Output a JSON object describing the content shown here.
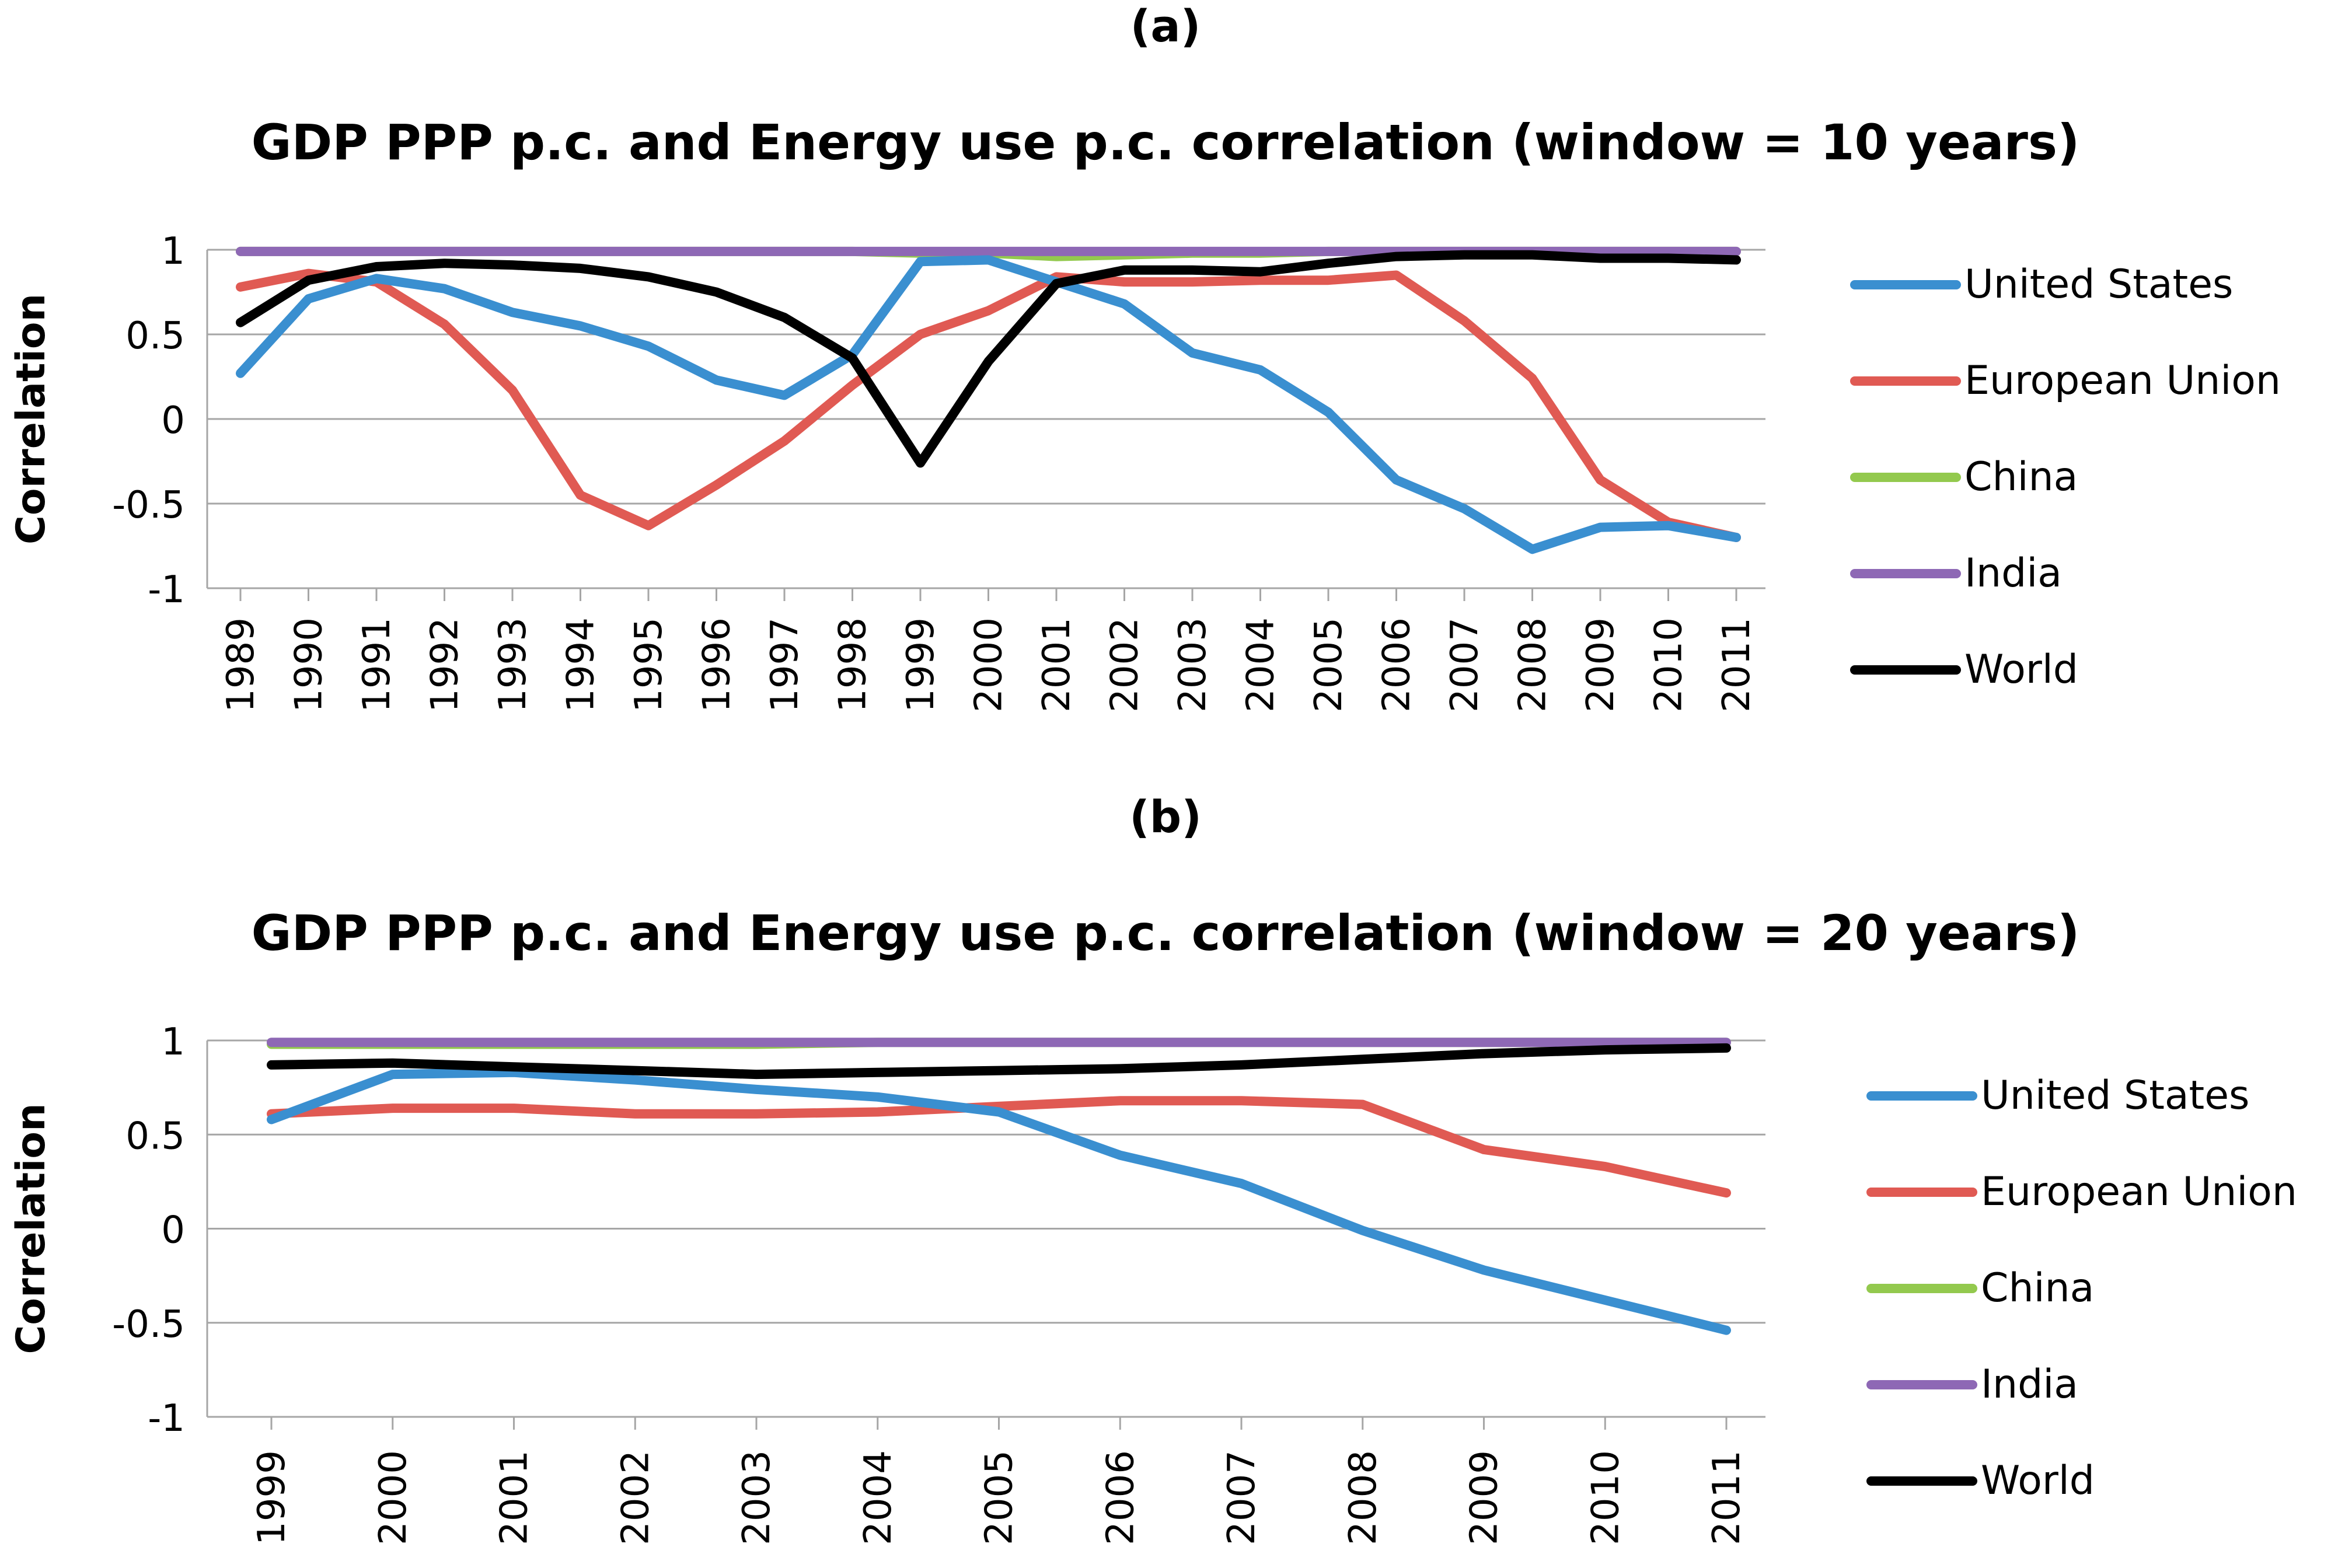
{
  "panels": [
    {
      "letter": "(a)",
      "title": "GDP PPP p.c. and Energy use p.c. correlation (window = 10 years)"
    },
    {
      "letter": "(b)",
      "title": "GDP PPP p.c. and Energy use p.c. correlation (window = 20 years)"
    }
  ],
  "chart_data": [
    {
      "type": "line",
      "title": "GDP PPP p.c. and Energy use p.c. correlation (window = 10 years)",
      "xlabel": "",
      "ylabel": "Correlation",
      "ylim": [
        -1,
        1
      ],
      "yticks": [
        1,
        0.5,
        0,
        -0.5,
        -1
      ],
      "ytick_labels": [
        "1",
        "0.5",
        "0",
        "-0.5",
        "-1"
      ],
      "grid": true,
      "legend_position": "right",
      "categories": [
        "1989",
        "1990",
        "1991",
        "1992",
        "1993",
        "1994",
        "1995",
        "1996",
        "1997",
        "1998",
        "1999",
        "2000",
        "2001",
        "2002",
        "2003",
        "2004",
        "2005",
        "2006",
        "2007",
        "2008",
        "2009",
        "2010",
        "2011"
      ],
      "series": [
        {
          "name": "United States",
          "color": "#3a8fd0",
          "values": [
            0.27,
            0.71,
            0.83,
            0.77,
            0.63,
            0.55,
            0.43,
            0.23,
            0.14,
            0.38,
            0.93,
            0.94,
            0.81,
            0.68,
            0.39,
            0.29,
            0.04,
            -0.36,
            -0.53,
            -0.77,
            -0.64,
            -0.63,
            -0.7
          ]
        },
        {
          "name": "European Union",
          "color": "#e05a53",
          "values": [
            0.78,
            0.86,
            0.81,
            0.56,
            0.17,
            -0.45,
            -0.63,
            -0.39,
            -0.13,
            0.2,
            0.5,
            0.64,
            0.84,
            0.81,
            0.81,
            0.82,
            0.82,
            0.85,
            0.58,
            0.24,
            -0.36,
            -0.61,
            -0.7
          ]
        },
        {
          "name": "China",
          "color": "#93c94e",
          "values": [
            0.99,
            0.99,
            0.99,
            0.99,
            0.99,
            0.99,
            0.99,
            0.99,
            0.99,
            0.99,
            0.98,
            0.98,
            0.96,
            0.97,
            0.98,
            0.98,
            0.99,
            0.99,
            0.99,
            0.99,
            0.99,
            0.99,
            0.99
          ]
        },
        {
          "name": "India",
          "color": "#8e68b5",
          "values": [
            0.99,
            0.99,
            0.99,
            0.99,
            0.99,
            0.99,
            0.99,
            0.99,
            0.99,
            0.99,
            0.99,
            0.99,
            0.99,
            0.99,
            0.99,
            0.99,
            0.99,
            0.99,
            0.99,
            0.99,
            0.99,
            0.99,
            0.99
          ]
        },
        {
          "name": "World",
          "color": "#000000",
          "values": [
            0.57,
            0.82,
            0.9,
            0.92,
            0.91,
            0.89,
            0.84,
            0.75,
            0.6,
            0.36,
            -0.26,
            0.34,
            0.8,
            0.88,
            0.88,
            0.87,
            0.92,
            0.96,
            0.97,
            0.97,
            0.95,
            0.95,
            0.94
          ]
        }
      ]
    },
    {
      "type": "line",
      "title": "GDP PPP p.c. and Energy use p.c. correlation (window = 20 years)",
      "xlabel": "",
      "ylabel": "Correlation",
      "ylim": [
        -1,
        1
      ],
      "yticks": [
        1,
        0.5,
        0,
        -0.5,
        -1
      ],
      "ytick_labels": [
        "1",
        "0.5",
        "0",
        "-0.5",
        "-1"
      ],
      "grid": true,
      "legend_position": "right",
      "categories": [
        "1999",
        "2000",
        "2001",
        "2002",
        "2003",
        "2004",
        "2005",
        "2006",
        "2007",
        "2008",
        "2009",
        "2010",
        "2011"
      ],
      "series": [
        {
          "name": "United States",
          "color": "#3a8fd0",
          "values": [
            0.58,
            0.82,
            0.83,
            0.79,
            0.74,
            0.7,
            0.62,
            0.39,
            0.24,
            -0.01,
            -0.22,
            -0.38,
            -0.54
          ]
        },
        {
          "name": "European Union",
          "color": "#e05a53",
          "values": [
            0.61,
            0.64,
            0.64,
            0.61,
            0.61,
            0.62,
            0.65,
            0.68,
            0.68,
            0.66,
            0.42,
            0.33,
            0.19
          ]
        },
        {
          "name": "China",
          "color": "#93c94e",
          "values": [
            0.98,
            0.98,
            0.98,
            0.98,
            0.98,
            0.99,
            0.99,
            0.99,
            0.99,
            0.99,
            0.99,
            0.99,
            0.99
          ]
        },
        {
          "name": "India",
          "color": "#8e68b5",
          "values": [
            0.99,
            0.99,
            0.99,
            0.99,
            0.99,
            0.99,
            0.99,
            0.99,
            0.99,
            0.99,
            0.99,
            0.99,
            0.99
          ]
        },
        {
          "name": "World",
          "color": "#000000",
          "values": [
            0.87,
            0.88,
            0.86,
            0.84,
            0.82,
            0.83,
            0.84,
            0.85,
            0.87,
            0.9,
            0.93,
            0.95,
            0.96
          ]
        }
      ]
    }
  ]
}
